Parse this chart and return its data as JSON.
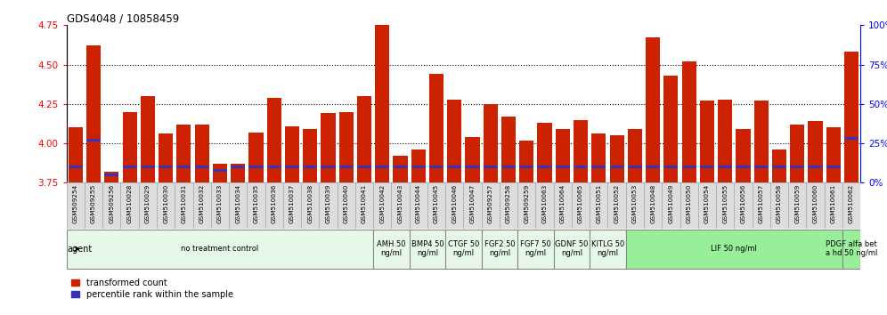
{
  "title": "GDS4048 / 10858459",
  "ylim": [
    3.75,
    4.75
  ],
  "yticks": [
    3.75,
    4.0,
    4.25,
    4.5,
    4.75
  ],
  "right_yticks": [
    0,
    25,
    50,
    75,
    100
  ],
  "right_ylim": [
    0,
    100
  ],
  "bar_color": "#cc2200",
  "blue_color": "#3333bb",
  "bg_color": "#ffffff",
  "samples": [
    "GSM509254",
    "GSM509255",
    "GSM509256",
    "GSM510028",
    "GSM510029",
    "GSM510030",
    "GSM510031",
    "GSM510032",
    "GSM510033",
    "GSM510034",
    "GSM510035",
    "GSM510036",
    "GSM510037",
    "GSM510038",
    "GSM510039",
    "GSM510040",
    "GSM510041",
    "GSM510042",
    "GSM510043",
    "GSM510044",
    "GSM510045",
    "GSM510046",
    "GSM510047",
    "GSM509257",
    "GSM509258",
    "GSM509259",
    "GSM510063",
    "GSM510064",
    "GSM510065",
    "GSM510051",
    "GSM510052",
    "GSM510053",
    "GSM510048",
    "GSM510049",
    "GSM510050",
    "GSM510054",
    "GSM510055",
    "GSM510056",
    "GSM510057",
    "GSM510058",
    "GSM510059",
    "GSM510060",
    "GSM510061",
    "GSM510062"
  ],
  "red_values": [
    4.1,
    4.62,
    3.82,
    4.2,
    4.3,
    4.06,
    4.12,
    4.12,
    3.87,
    3.87,
    4.07,
    4.29,
    4.11,
    4.09,
    4.19,
    4.2,
    4.3,
    4.75,
    3.92,
    3.96,
    4.44,
    4.28,
    4.04,
    4.25,
    4.17,
    4.02,
    4.13,
    4.09,
    4.15,
    4.06,
    4.05,
    4.09,
    4.67,
    4.43,
    4.52,
    4.27,
    4.28,
    4.09,
    4.27,
    3.96,
    4.12,
    4.14,
    4.1,
    4.58
  ],
  "blue_values": [
    10,
    27,
    5,
    10,
    10,
    10,
    10,
    10,
    8,
    10,
    10,
    10,
    10,
    10,
    10,
    10,
    10,
    10,
    10,
    10,
    10,
    10,
    10,
    10,
    10,
    10,
    10,
    10,
    10,
    10,
    10,
    10,
    10,
    10,
    10,
    10,
    10,
    10,
    10,
    10,
    10,
    10,
    10,
    28
  ],
  "group_labels": [
    "no treatment control",
    "AMH 50\nng/ml",
    "BMP4 50\nng/ml",
    "CTGF 50\nng/ml",
    "FGF2 50\nng/ml",
    "FGF7 50\nng/ml",
    "GDNF 50\nng/ml",
    "KITLG 50\nng/ml",
    "LIF 50 ng/ml",
    "PDGF alfa bet\na hd 50 ng/ml"
  ],
  "group_starts": [
    0,
    17,
    19,
    21,
    23,
    25,
    27,
    29,
    31,
    43
  ],
  "group_ends": [
    17,
    19,
    21,
    23,
    25,
    27,
    29,
    31,
    43,
    44
  ],
  "group_colors": [
    "#e8f8e8",
    "#e8f8e8",
    "#e8f8e8",
    "#e8f8e8",
    "#e8f8e8",
    "#e8f8e8",
    "#e8f8e8",
    "#e8f8e8",
    "#99ee99",
    "#99ee99"
  ],
  "xticklabel_bg": "#dddddd"
}
